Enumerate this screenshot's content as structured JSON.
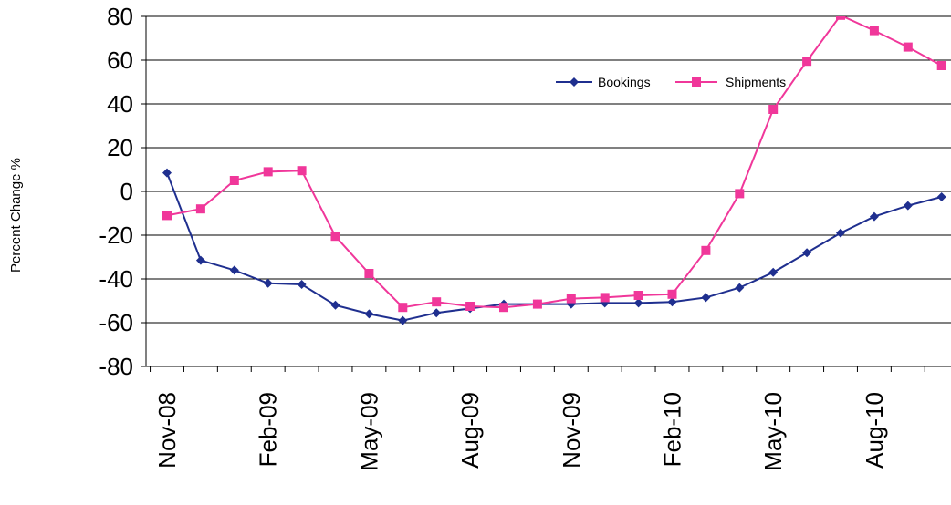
{
  "chart_data": {
    "type": "line",
    "title": "",
    "xlabel": "",
    "ylabel": "Percent Change %",
    "ylim": [
      -80,
      80
    ],
    "yticks": [
      80,
      60,
      40,
      20,
      0,
      -20,
      -40,
      -60,
      -80
    ],
    "grid": true,
    "legend_position": "top-right",
    "categories": [
      "Nov-08",
      "Dec-08",
      "Jan-09",
      "Feb-09",
      "Mar-09",
      "Apr-09",
      "May-09",
      "Jun-09",
      "Jul-09",
      "Aug-09",
      "Sep-09",
      "Oct-09",
      "Nov-09",
      "Dec-09",
      "Jan-10",
      "Feb-10",
      "Mar-10",
      "Apr-10",
      "May-10",
      "Jun-10",
      "Jul-10",
      "Aug-10",
      "Sep-10",
      "Oct-10"
    ],
    "tick_labels": [
      "Nov-08",
      "Feb-09",
      "May-09",
      "Aug-09",
      "Nov-09",
      "Feb-10",
      "May-10",
      "Aug-10"
    ],
    "series": [
      {
        "name": "Bookings",
        "color": "#1f2f8f",
        "marker": "diamond",
        "values": [
          8.5,
          -31.5,
          -36,
          -42,
          -42.5,
          -52,
          -56,
          -59,
          -55.5,
          -53.5,
          -51.5,
          -51.5,
          -51.5,
          -51,
          -51,
          -50.5,
          -48.5,
          -44,
          -37,
          -28,
          -19,
          -11.5,
          -6.5,
          -2.5
        ]
      },
      {
        "name": "Shipments",
        "color": "#f0379a",
        "marker": "square",
        "values": [
          -11,
          -8,
          5,
          9,
          9.5,
          -20.5,
          -37.5,
          -53,
          -50.5,
          -52.5,
          -53,
          -51.5,
          -49,
          -48.5,
          -47.5,
          -47,
          -27,
          -1,
          37.5,
          59.5,
          80.5,
          73.5,
          66,
          57.5
        ]
      }
    ]
  }
}
